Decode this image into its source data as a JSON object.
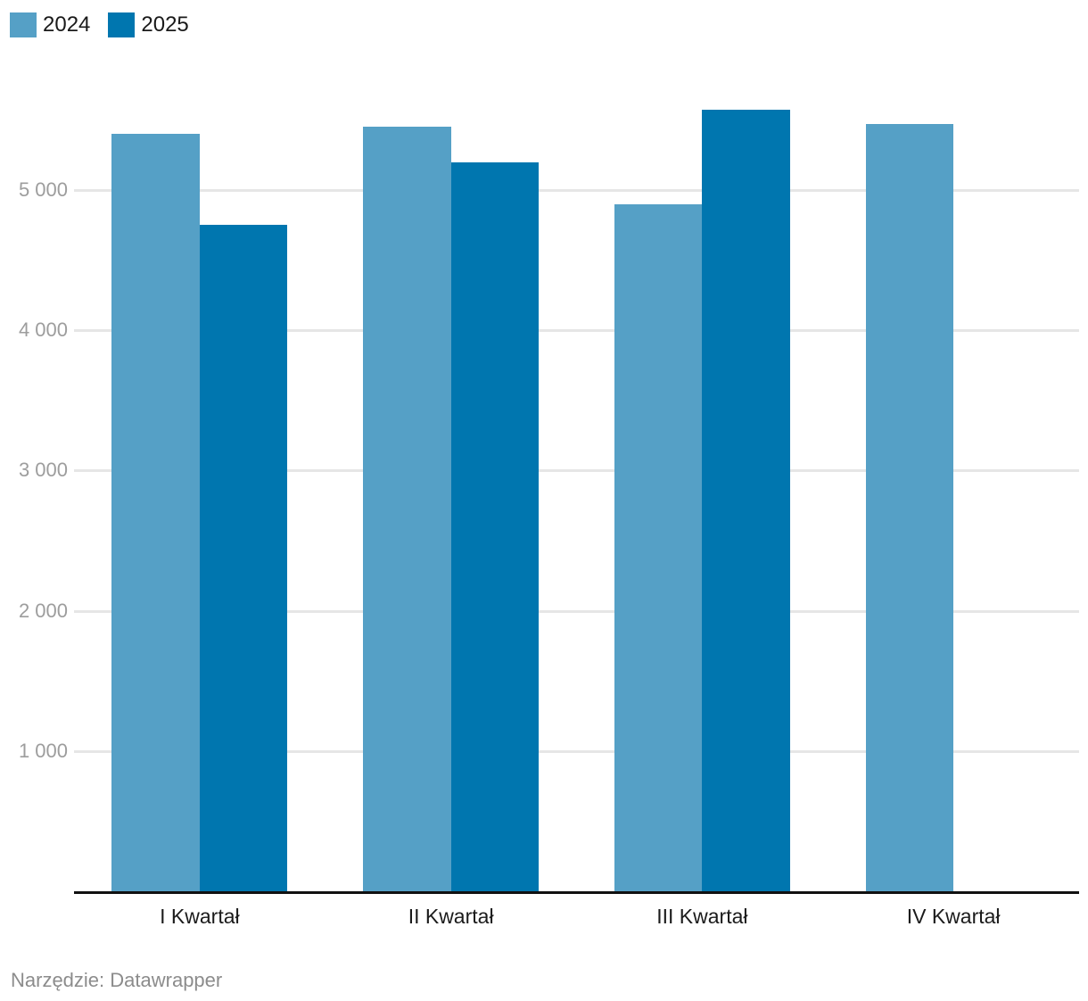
{
  "legend": {
    "items": [
      {
        "label": "2024",
        "color": "#55a0c6"
      },
      {
        "label": "2025",
        "color": "#0076af"
      }
    ]
  },
  "footer": {
    "text": "Narzędzie: Datawrapper"
  },
  "chart_data": {
    "type": "bar",
    "grouped": true,
    "title": "",
    "xlabel": "",
    "ylabel": "",
    "categories": [
      "I Kwartał",
      "II Kwartał",
      "III Kwartał",
      "IV Kwartał"
    ],
    "series": [
      {
        "name": "2024",
        "color": "#55a0c6",
        "values": [
          5400,
          5450,
          4900,
          5470
        ]
      },
      {
        "name": "2025",
        "color": "#0076af",
        "values": [
          4750,
          5200,
          5570,
          null
        ]
      }
    ],
    "ylim": [
      0,
      5600
    ],
    "yticks": [
      1000,
      2000,
      3000,
      4000,
      5000
    ],
    "ytick_labels": [
      "1 000",
      "2 000",
      "3 000",
      "4 000",
      "5 000"
    ],
    "grid": true,
    "legend_position": "top-left",
    "colors": {
      "gridline": "#e6e6e6",
      "axis_line": "#111111",
      "ytick_text": "#9d9d9d",
      "xtick_text": "#1b1b1b"
    }
  }
}
